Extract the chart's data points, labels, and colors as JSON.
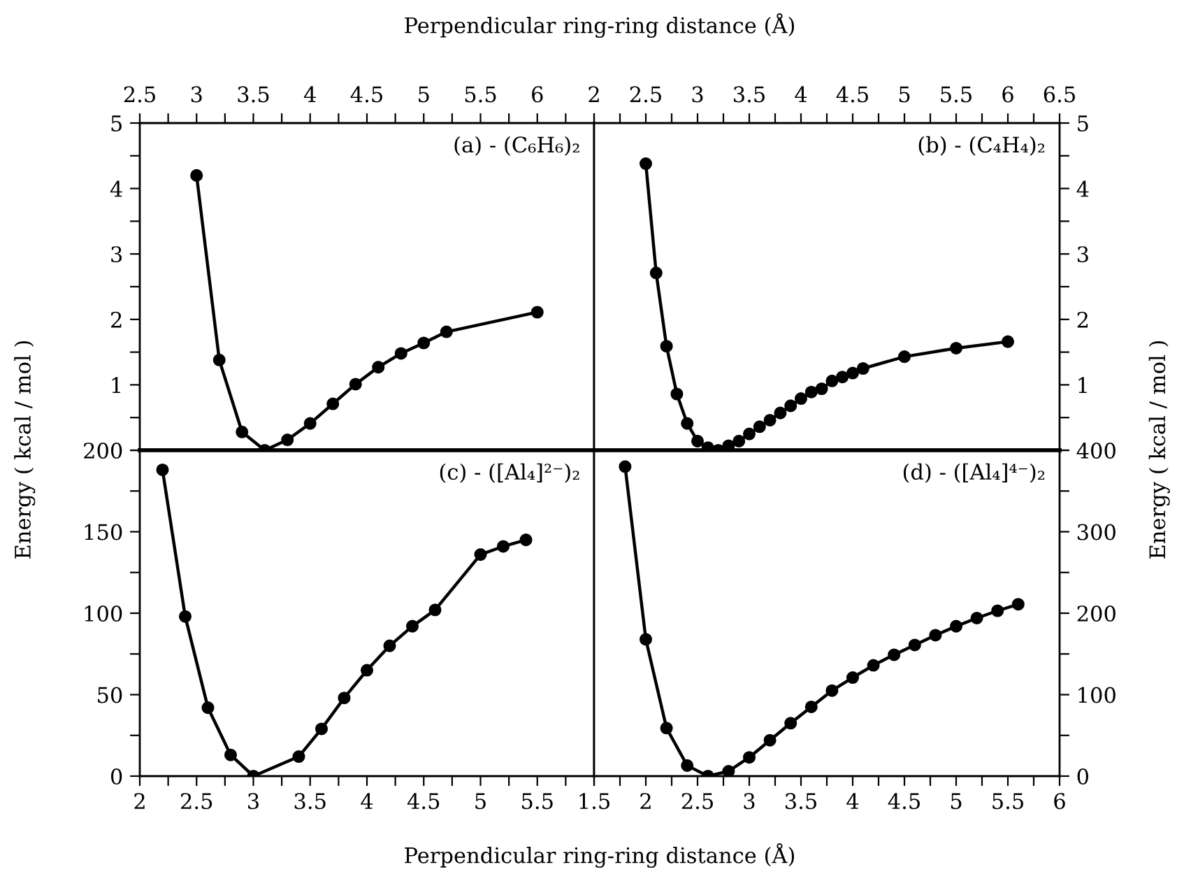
{
  "chart_data": [
    {
      "type": "line",
      "xlabel": "Perpendicular ring-ring distance (Å)",
      "ylabel": "Energy ( kcal / mol )",
      "annotations": [
        "(a) - (C₆H₆)₂"
      ],
      "marker": "circle",
      "line_style": "solid",
      "grid": false,
      "legend": false,
      "series": [
        {
          "color": "#000000",
          "x": [
            3.0,
            3.2,
            3.4,
            3.6,
            3.8,
            4.0,
            4.2,
            4.4,
            4.6,
            4.8,
            5.0,
            5.2,
            6.0
          ],
          "values": [
            4.2,
            1.38,
            0.28,
            0.0,
            0.16,
            0.41,
            0.71,
            1.01,
            1.27,
            1.48,
            1.64,
            1.81,
            2.11
          ]
        }
      ],
      "xlim": [
        2.5,
        6.5
      ],
      "xticks": [
        2.5,
        {
          "value": 2.75,
          "label": null
        },
        3,
        {
          "value": 3.25,
          "label": null
        },
        3.5,
        {
          "value": 3.75,
          "label": null
        },
        4,
        {
          "value": 4.25,
          "label": null
        },
        4.5,
        {
          "value": 4.75,
          "label": null
        },
        5,
        {
          "value": 5.25,
          "label": null
        },
        5.5,
        {
          "value": 5.75,
          "label": null
        },
        6,
        {
          "value": 6.25,
          "label": null
        },
        {
          "value": 6.5,
          "label": null
        }
      ],
      "ylim": [
        0,
        5
      ],
      "yticks": [
        {
          "value": 0,
          "label": null
        },
        {
          "value": 0.5,
          "label": null
        },
        1,
        {
          "value": 1.5,
          "label": null
        },
        2,
        {
          "value": 2.5,
          "label": null
        },
        3,
        {
          "value": 3.5,
          "label": null
        },
        4,
        {
          "value": 4.5,
          "label": null
        },
        5
      ]
    },
    {
      "type": "line",
      "annotations": [
        "(b) - (C₄H₄)₂"
      ],
      "marker": "circle",
      "line_style": "solid",
      "grid": false,
      "legend": false,
      "series": [
        {
          "color": "#000000",
          "x": [
            2.5,
            2.6,
            2.7,
            2.8,
            2.9,
            3.0,
            3.1,
            3.2,
            3.3,
            3.4,
            3.5,
            3.6,
            3.7,
            3.8,
            3.9,
            4.0,
            4.1,
            4.2,
            4.3,
            4.4,
            4.5,
            4.6,
            5.0,
            5.5,
            6.0
          ],
          "values": [
            4.38,
            2.71,
            1.59,
            0.86,
            0.41,
            0.14,
            0.04,
            0.0,
            0.07,
            0.14,
            0.25,
            0.36,
            0.46,
            0.57,
            0.68,
            0.79,
            0.89,
            0.94,
            1.06,
            1.12,
            1.18,
            1.25,
            1.43,
            1.56,
            1.66
          ]
        }
      ],
      "xlim": [
        2,
        6.5
      ],
      "xticks": [
        2,
        {
          "value": 2.25,
          "label": null
        },
        2.5,
        {
          "value": 2.75,
          "label": null
        },
        3,
        {
          "value": 3.25,
          "label": null
        },
        3.5,
        {
          "value": 3.75,
          "label": null
        },
        4,
        {
          "value": 4.25,
          "label": null
        },
        4.5,
        {
          "value": 4.75,
          "label": null
        },
        5,
        {
          "value": 5.25,
          "label": null
        },
        5.5,
        {
          "value": 5.75,
          "label": null
        },
        6,
        {
          "value": 6.25,
          "label": null
        },
        6.5
      ],
      "ylim": [
        0,
        5
      ],
      "yticks": [
        {
          "value": 0,
          "label": null
        },
        {
          "value": 0.5,
          "label": null
        },
        1,
        {
          "value": 1.5,
          "label": null
        },
        2,
        {
          "value": 2.5,
          "label": null
        },
        3,
        {
          "value": 3.5,
          "label": null
        },
        4,
        {
          "value": 4.5,
          "label": null
        },
        5
      ]
    },
    {
      "type": "line",
      "xlabel": "Perpendicular ring-ring distance (Å)",
      "annotations": [
        "(c) - ([Al₄]²⁻)₂"
      ],
      "marker": "circle",
      "line_style": "solid",
      "grid": false,
      "legend": false,
      "series": [
        {
          "color": "#000000",
          "x": [
            2.2,
            2.4,
            2.6,
            2.8,
            3.0,
            3.4,
            3.6,
            3.8,
            4.0,
            4.2,
            4.4,
            4.6,
            5.0,
            5.2,
            5.4
          ],
          "values": [
            188,
            98,
            42,
            13,
            0,
            12,
            29,
            48,
            65,
            80,
            92,
            102,
            136,
            141,
            145
          ]
        }
      ],
      "xlim": [
        2,
        6
      ],
      "xticks": [
        2,
        {
          "value": 2.25,
          "label": null
        },
        2.5,
        {
          "value": 2.75,
          "label": null
        },
        3,
        {
          "value": 3.25,
          "label": null
        },
        3.5,
        {
          "value": 3.75,
          "label": null
        },
        4,
        {
          "value": 4.25,
          "label": null
        },
        4.5,
        {
          "value": 4.75,
          "label": null
        },
        5,
        {
          "value": 5.25,
          "label": null
        },
        5.5,
        {
          "value": 5.75,
          "label": null
        },
        {
          "value": 6,
          "label": null
        }
      ],
      "ylim": [
        0,
        200
      ],
      "yticks": [
        0,
        {
          "value": 25,
          "label": null
        },
        50,
        {
          "value": 75,
          "label": null
        },
        100,
        {
          "value": 125,
          "label": null
        },
        150,
        {
          "value": 175,
          "label": null
        },
        200
      ]
    },
    {
      "type": "line",
      "ylabel": "Energy ( kcal / mol )",
      "annotations": [
        "(d) - ([Al₄]⁴⁻)₂"
      ],
      "marker": "circle",
      "line_style": "solid",
      "grid": false,
      "legend": false,
      "series": [
        {
          "color": "#000000",
          "x": [
            1.8,
            2.0,
            2.2,
            2.4,
            2.6,
            2.8,
            3.0,
            3.2,
            3.4,
            3.6,
            3.8,
            4.0,
            4.2,
            4.4,
            4.6,
            4.8,
            5.0,
            5.2,
            5.4,
            5.6
          ],
          "values": [
            380,
            168,
            59,
            13,
            0,
            6,
            23,
            44,
            65,
            85,
            105,
            121,
            136,
            149,
            161,
            173,
            184,
            194,
            203,
            211
          ]
        }
      ],
      "xlim": [
        1.5,
        6
      ],
      "xticks": [
        1.5,
        {
          "value": 1.75,
          "label": null
        },
        2,
        {
          "value": 2.25,
          "label": null
        },
        2.5,
        {
          "value": 2.75,
          "label": null
        },
        3,
        {
          "value": 3.25,
          "label": null
        },
        3.5,
        {
          "value": 3.75,
          "label": null
        },
        4,
        {
          "value": 4.25,
          "label": null
        },
        4.5,
        {
          "value": 4.75,
          "label": null
        },
        5,
        {
          "value": 5.25,
          "label": null
        },
        5.5,
        {
          "value": 5.75,
          "label": null
        },
        6
      ],
      "ylim": [
        0,
        400
      ],
      "yticks": [
        0,
        {
          "value": 50,
          "label": null
        },
        100,
        {
          "value": 150,
          "label": null
        },
        200,
        {
          "value": 250,
          "label": null
        },
        300,
        {
          "value": 350,
          "label": null
        },
        400
      ]
    }
  ]
}
